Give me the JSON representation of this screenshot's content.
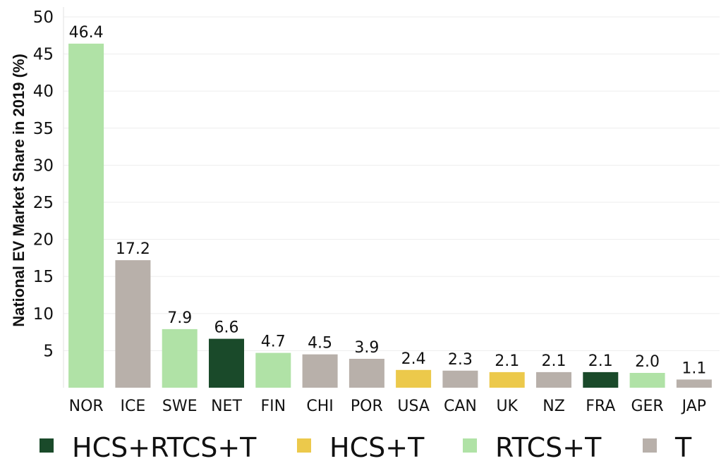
{
  "chart_data": {
    "type": "bar",
    "ylabel": "National EV Market Share in 2019 (%)",
    "xlabel": "",
    "ylim": [
      0,
      50
    ],
    "yticks": [
      5,
      10,
      15,
      20,
      25,
      30,
      35,
      40,
      45,
      50
    ],
    "grid": "horizontal",
    "categories": [
      "NOR",
      "ICE",
      "SWE",
      "NET",
      "FIN",
      "CHI",
      "POR",
      "USA",
      "CAN",
      "UK",
      "NZ",
      "FRA",
      "GER",
      "JAP"
    ],
    "values": [
      46.4,
      17.2,
      7.9,
      6.6,
      4.7,
      4.5,
      3.9,
      2.4,
      2.3,
      2.1,
      2.1,
      2.1,
      2.0,
      1.1
    ],
    "data_labels": [
      "46.4",
      "17.2",
      "7.9",
      "6.6",
      "4.7",
      "4.5",
      "3.9",
      "2.4",
      "2.3",
      "2.1",
      "2.1",
      "2.1",
      "2.0",
      "1.1"
    ],
    "bar_groups": [
      "RTCS+T",
      "T",
      "RTCS+T",
      "HCS+RTCS+T",
      "RTCS+T",
      "T",
      "T",
      "HCS+T",
      "T",
      "HCS+T",
      "T",
      "HCS+RTCS+T",
      "RTCS+T",
      "T"
    ],
    "legend_position": "bottom",
    "legend": [
      {
        "name": "HCS+RTCS+T",
        "color": "#1a4a2a"
      },
      {
        "name": "HCS+T",
        "color": "#ecc94b"
      },
      {
        "name": "RTCS+T",
        "color": "#b0e2a6"
      },
      {
        "name": "T",
        "color": "#b8b0aa"
      }
    ]
  }
}
